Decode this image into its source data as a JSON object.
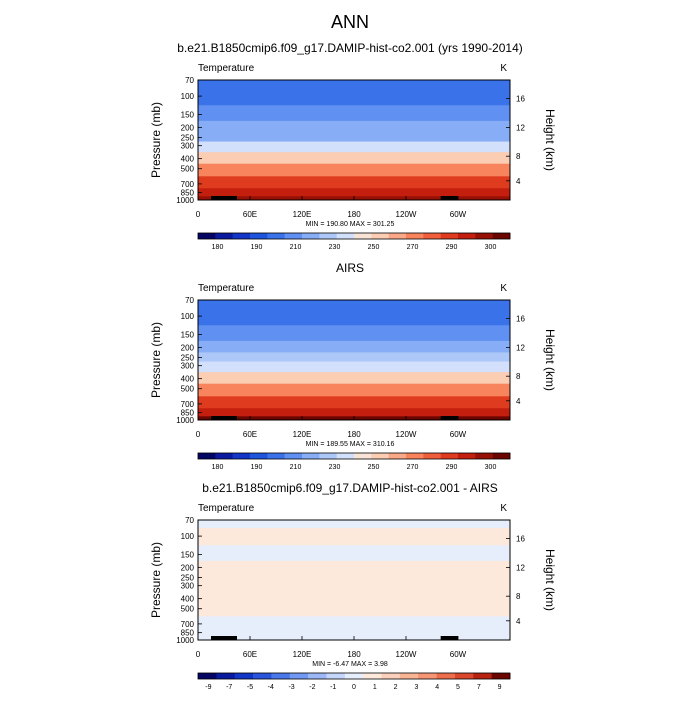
{
  "figure_title": "ANN",
  "chart_data": [
    {
      "type": "heatmap",
      "title": "b.e21.B1850cmip6.f09_g17.DAMIP-hist-co2.001 (yrs 1990-2014)",
      "variable": "Temperature",
      "units": "K",
      "xlabel": "",
      "ylabel": "Pressure (mb)",
      "ylabel_right": "Height (km)",
      "x_ticks": [
        "0",
        "60E",
        "120E",
        "180",
        "120W",
        "60W"
      ],
      "y_ticks": [
        "70",
        "100",
        "150",
        "200",
        "250",
        "300",
        "400",
        "500",
        "700",
        "850",
        "1000"
      ],
      "y_right_ticks": [
        "16",
        "12",
        "8",
        "4"
      ],
      "min_max": "MIN = 190.80  MAX = 301.25",
      "colorbar": {
        "labels": [
          "180",
          "190",
          "210",
          "230",
          "250",
          "270",
          "290",
          "300"
        ],
        "colors": [
          "#050563",
          "#0a1a9e",
          "#1236c7",
          "#1f55dc",
          "#3a72ea",
          "#5f90f2",
          "#86adf6",
          "#adc8f8",
          "#d2e0fb",
          "#f8e4d6",
          "#fbcdb3",
          "#fba888",
          "#f8845e",
          "#f05e3b",
          "#df3b1f",
          "#c31e0e",
          "#961005",
          "#6a0500"
        ]
      },
      "levels": [
        {
          "p": 70,
          "t": 210
        },
        {
          "p": 100,
          "t": 212
        },
        {
          "p": 150,
          "t": 218
        },
        {
          "p": 200,
          "t": 221
        },
        {
          "p": 250,
          "t": 226
        },
        {
          "p": 300,
          "t": 235
        },
        {
          "p": 400,
          "t": 249
        },
        {
          "p": 500,
          "t": 260
        },
        {
          "p": 700,
          "t": 276
        },
        {
          "p": 850,
          "t": 284
        },
        {
          "p": 1000,
          "t": 292
        }
      ]
    },
    {
      "type": "heatmap",
      "title": "AIRS",
      "variable": "Temperature",
      "units": "K",
      "xlabel": "",
      "ylabel": "Pressure (mb)",
      "ylabel_right": "Height (km)",
      "x_ticks": [
        "0",
        "60E",
        "120E",
        "180",
        "120W",
        "60W"
      ],
      "y_ticks": [
        "70",
        "100",
        "150",
        "200",
        "250",
        "300",
        "400",
        "500",
        "700",
        "850",
        "1000"
      ],
      "y_right_ticks": [
        "16",
        "12",
        "8",
        "4"
      ],
      "min_max": "MIN = 189.55  MAX = 310.16",
      "colorbar": {
        "labels": [
          "180",
          "190",
          "210",
          "230",
          "250",
          "270",
          "290",
          "300"
        ],
        "colors": [
          "#050563",
          "#0a1a9e",
          "#1236c7",
          "#1f55dc",
          "#3a72ea",
          "#5f90f2",
          "#86adf6",
          "#adc8f8",
          "#d2e0fb",
          "#f8e4d6",
          "#fbcdb3",
          "#fba888",
          "#f8845e",
          "#f05e3b",
          "#df3b1f",
          "#c31e0e",
          "#961005",
          "#6a0500"
        ]
      },
      "levels": [
        {
          "p": 70,
          "t": 210
        },
        {
          "p": 100,
          "t": 212
        },
        {
          "p": 150,
          "t": 218
        },
        {
          "p": 200,
          "t": 222
        },
        {
          "p": 250,
          "t": 228
        },
        {
          "p": 300,
          "t": 236
        },
        {
          "p": 400,
          "t": 251
        },
        {
          "p": 500,
          "t": 262
        },
        {
          "p": 700,
          "t": 277
        },
        {
          "p": 850,
          "t": 286
        },
        {
          "p": 1000,
          "t": 294
        }
      ]
    },
    {
      "type": "heatmap",
      "title": "b.e21.B1850cmip6.f09_g17.DAMIP-hist-co2.001 - AIRS",
      "variable": "Temperature",
      "units": "K",
      "xlabel": "",
      "ylabel": "Pressure (mb)",
      "ylabel_right": "Height (km)",
      "x_ticks": [
        "0",
        "60E",
        "120E",
        "180",
        "120W",
        "60W"
      ],
      "y_ticks": [
        "70",
        "100",
        "150",
        "200",
        "250",
        "300",
        "400",
        "500",
        "700",
        "850",
        "1000"
      ],
      "y_right_ticks": [
        "16",
        "12",
        "8",
        "4"
      ],
      "min_max": "MIN =  -6.47  MAX =   3.98",
      "colorbar": {
        "labels": [
          "-9",
          "-7",
          "-5",
          "-4",
          "-3",
          "-2",
          "-1",
          "0",
          "1",
          "2",
          "3",
          "4",
          "5",
          "7",
          "9"
        ],
        "colors": [
          "#050563",
          "#0a1a9e",
          "#1236c7",
          "#2855dc",
          "#4a78ea",
          "#7198f2",
          "#9cb8f6",
          "#c4d6fa",
          "#e6eefc",
          "#fde8dc",
          "#fbd0bc",
          "#f9b496",
          "#f69574",
          "#ec6e4c",
          "#d9482c",
          "#b8230f",
          "#6a0500"
        ]
      },
      "levels": [
        {
          "p": 70,
          "t": 0.3
        },
        {
          "p": 100,
          "t": 0.8
        },
        {
          "p": 150,
          "t": 0.4
        },
        {
          "p": 200,
          "t": 1.0
        },
        {
          "p": 250,
          "t": 1.2
        },
        {
          "p": 300,
          "t": 1.0
        },
        {
          "p": 400,
          "t": 0.6
        },
        {
          "p": 500,
          "t": 0.8
        },
        {
          "p": 700,
          "t": 0.5
        },
        {
          "p": 850,
          "t": -0.3
        },
        {
          "p": 1000,
          "t": 0.4
        }
      ]
    }
  ]
}
